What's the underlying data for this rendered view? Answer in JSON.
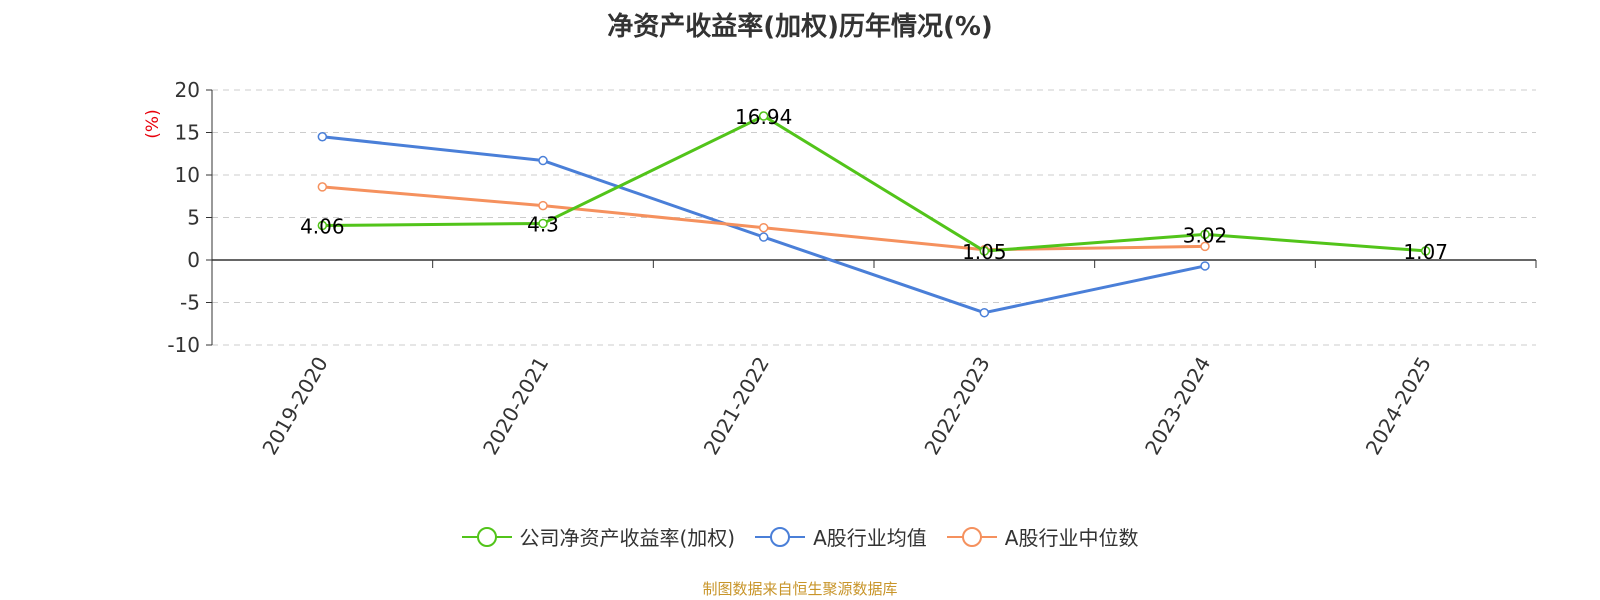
{
  "title": "净资产收益率(加权)历年情况(%)",
  "source": "制图数据来自恒生聚源数据库",
  "chart_data": {
    "type": "line",
    "title": "净资产收益率(加权)历年情况(%)",
    "ylabel": "(%)",
    "ylabel_color": "#e8000b",
    "ylim": [
      -10,
      20
    ],
    "yticks": [
      "20",
      "15",
      "10",
      "5",
      "0",
      "-5",
      "-10"
    ],
    "categories": [
      "2019-2020",
      "2020-2021",
      "2021-2022",
      "2022-2023",
      "2023-2024",
      "2024-2025"
    ],
    "grid": true,
    "legend_position": "bottom",
    "series": [
      {
        "name": "公司净资产收益率(加权)",
        "color": "#52c41a",
        "values": [
          4.06,
          4.3,
          16.94,
          1.05,
          3.02,
          1.07
        ],
        "labels": [
          "4.06",
          "4.3",
          "16.94",
          "1.05",
          "3.02",
          "1.07"
        ]
      },
      {
        "name": "A股行业均值",
        "color": "#4a7fd8",
        "values": [
          14.5,
          11.7,
          2.7,
          -6.2,
          -0.7,
          null
        ]
      },
      {
        "name": "A股行业中位数",
        "color": "#f5915e",
        "values": [
          8.6,
          6.4,
          3.8,
          1.2,
          1.6,
          null
        ]
      }
    ]
  }
}
